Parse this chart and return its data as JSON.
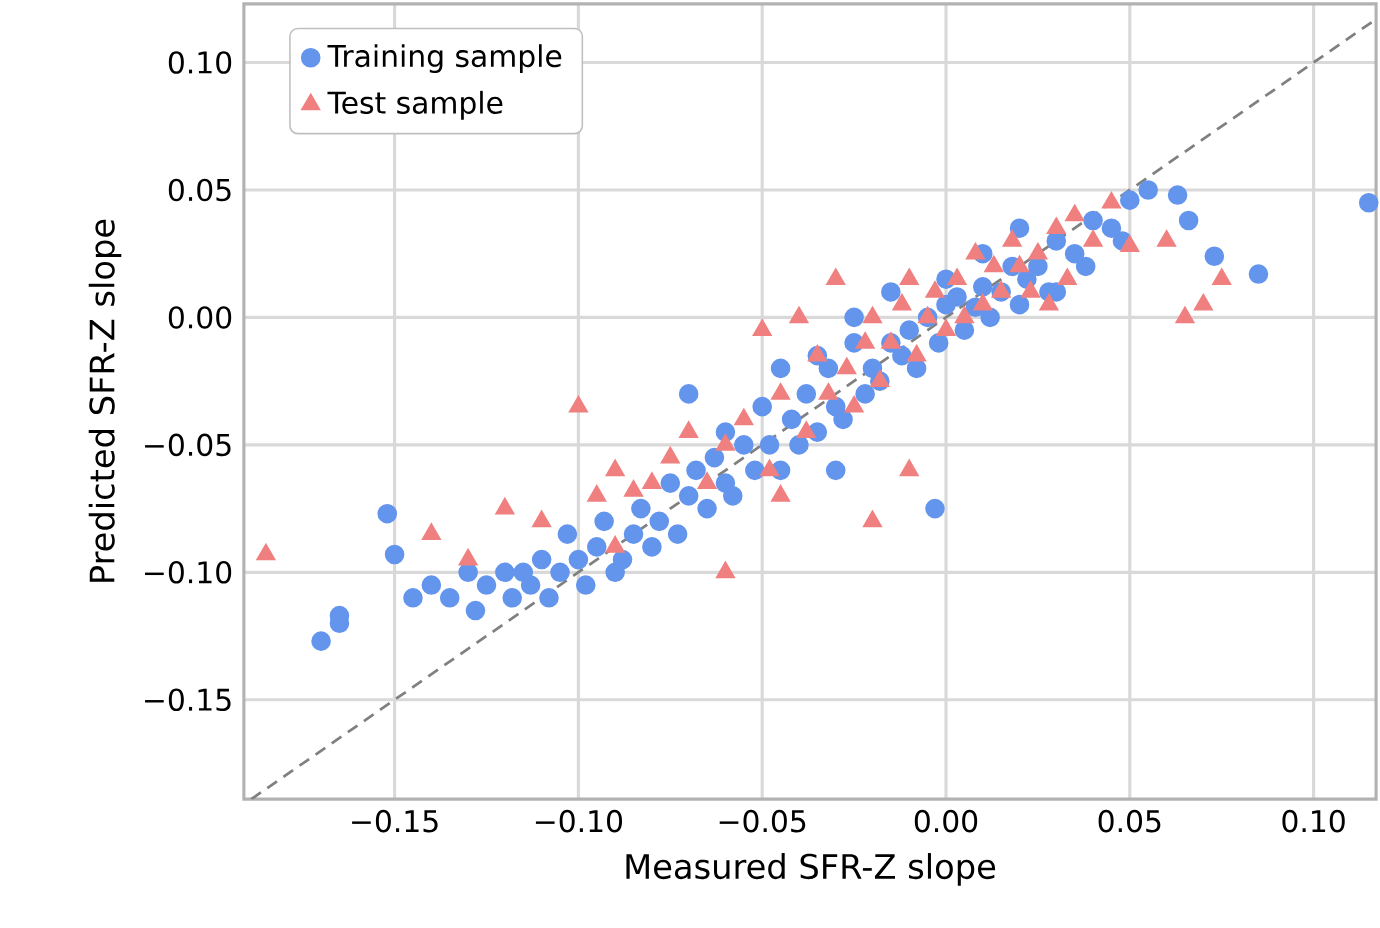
{
  "chart_data": {
    "type": "scatter",
    "xlabel": "Measured SFR-Z slope",
    "ylabel": "Predicted SFR-Z slope",
    "xlim": [
      -0.191,
      0.117
    ],
    "ylim": [
      -0.189,
      0.123
    ],
    "xticks": [
      {
        "value": -0.15,
        "label": "−0.15"
      },
      {
        "value": -0.1,
        "label": "−0.10"
      },
      {
        "value": -0.05,
        "label": "−0.05"
      },
      {
        "value": 0,
        "label": "0.00"
      },
      {
        "value": 0.05,
        "label": "0.05"
      },
      {
        "value": 0.1,
        "label": "0.10"
      }
    ],
    "yticks": [
      {
        "value": -0.15,
        "label": "−0.15"
      },
      {
        "value": -0.1,
        "label": "−0.10"
      },
      {
        "value": -0.05,
        "label": "−0.05"
      },
      {
        "value": 0,
        "label": "0.00"
      },
      {
        "value": 0.05,
        "label": "0.05"
      },
      {
        "value": 0.1,
        "label": "0.10"
      }
    ],
    "grid": true,
    "legend": "top left",
    "series": [
      {
        "name": "Training sample",
        "color": "#6495ed",
        "marker": "circle",
        "x": [
          0.115,
          0.085,
          0.073,
          0.066,
          0.063,
          0.055,
          0.05,
          0.048,
          0.045,
          0.04,
          0.038,
          0.035,
          0.03,
          0.028,
          0.025,
          0.022,
          0.02,
          0.018,
          0.015,
          0.012,
          0.01,
          0.008,
          0.005,
          0.003,
          0.0,
          -0.002,
          -0.003,
          -0.005,
          -0.008,
          -0.01,
          -0.012,
          -0.015,
          -0.018,
          -0.02,
          -0.022,
          -0.025,
          -0.028,
          -0.03,
          -0.032,
          -0.035,
          -0.038,
          -0.04,
          -0.042,
          -0.045,
          -0.048,
          -0.05,
          -0.052,
          -0.055,
          -0.058,
          -0.06,
          -0.063,
          -0.065,
          -0.068,
          -0.07,
          -0.073,
          -0.075,
          -0.078,
          -0.08,
          -0.083,
          -0.085,
          -0.088,
          -0.09,
          -0.093,
          -0.095,
          -0.098,
          -0.1,
          -0.103,
          -0.105,
          -0.108,
          -0.11,
          -0.113,
          -0.115,
          -0.118,
          -0.12,
          -0.125,
          -0.128,
          -0.13,
          -0.135,
          -0.14,
          -0.145,
          -0.15,
          -0.152,
          -0.165,
          -0.165,
          -0.17,
          -0.06,
          -0.07,
          -0.045,
          -0.03,
          0.01,
          -0.0,
          0.02,
          -0.015,
          0.03,
          -0.025,
          -0.035
        ],
        "values": [
          0.045,
          0.017,
          0.024,
          0.038,
          0.048,
          0.05,
          0.046,
          0.03,
          0.035,
          0.038,
          0.02,
          0.025,
          0.03,
          0.01,
          0.02,
          0.015,
          0.005,
          0.02,
          0.01,
          0.0,
          0.012,
          0.004,
          -0.005,
          0.008,
          0.005,
          -0.01,
          -0.075,
          0.0,
          -0.02,
          -0.005,
          -0.015,
          -0.01,
          -0.025,
          -0.02,
          -0.03,
          -0.01,
          -0.04,
          -0.035,
          -0.02,
          -0.045,
          -0.03,
          -0.05,
          -0.04,
          -0.06,
          -0.05,
          -0.035,
          -0.06,
          -0.05,
          -0.07,
          -0.065,
          -0.055,
          -0.075,
          -0.06,
          -0.07,
          -0.085,
          -0.065,
          -0.08,
          -0.09,
          -0.075,
          -0.085,
          -0.095,
          -0.1,
          -0.08,
          -0.09,
          -0.105,
          -0.095,
          -0.085,
          -0.1,
          -0.11,
          -0.095,
          -0.105,
          -0.1,
          -0.11,
          -0.1,
          -0.105,
          -0.115,
          -0.1,
          -0.11,
          -0.105,
          -0.11,
          -0.093,
          -0.077,
          -0.12,
          -0.117,
          -0.127,
          -0.045,
          -0.03,
          -0.02,
          -0.06,
          0.025,
          0.015,
          0.035,
          0.01,
          0.01,
          0.0,
          -0.015
        ]
      },
      {
        "name": "Test sample",
        "color": "#f08080",
        "marker": "triangle",
        "x": [
          -0.185,
          -0.14,
          -0.13,
          -0.12,
          -0.11,
          -0.1,
          -0.095,
          -0.09,
          -0.085,
          -0.08,
          -0.075,
          -0.07,
          -0.065,
          -0.06,
          -0.055,
          -0.05,
          -0.048,
          -0.045,
          -0.04,
          -0.038,
          -0.035,
          -0.032,
          -0.03,
          -0.027,
          -0.025,
          -0.022,
          -0.02,
          -0.018,
          -0.015,
          -0.012,
          -0.01,
          -0.008,
          -0.005,
          -0.003,
          0.0,
          0.003,
          0.005,
          0.008,
          0.01,
          0.013,
          0.015,
          0.018,
          0.02,
          0.023,
          0.025,
          0.028,
          0.03,
          0.033,
          0.035,
          0.04,
          0.045,
          0.05,
          0.06,
          0.065,
          0.07,
          0.075,
          -0.01,
          -0.02,
          -0.045,
          -0.06,
          -0.09
        ],
        "values": [
          -0.093,
          -0.085,
          -0.095,
          -0.075,
          -0.08,
          -0.035,
          -0.07,
          -0.06,
          -0.068,
          -0.065,
          -0.055,
          -0.045,
          -0.065,
          -0.05,
          -0.04,
          -0.005,
          -0.06,
          -0.03,
          0.0,
          -0.045,
          -0.015,
          -0.03,
          0.015,
          -0.02,
          -0.035,
          -0.01,
          0.0,
          -0.025,
          -0.01,
          0.005,
          0.015,
          -0.015,
          0.0,
          0.01,
          -0.005,
          0.015,
          0.0,
          0.025,
          0.005,
          0.02,
          0.01,
          0.03,
          0.02,
          0.01,
          0.025,
          0.005,
          0.035,
          0.015,
          0.04,
          0.03,
          0.045,
          0.028,
          0.03,
          0.0,
          0.005,
          0.015,
          -0.06,
          -0.08,
          -0.07,
          -0.1,
          -0.09
        ]
      },
      {
        "type": "line",
        "color": "#808080",
        "line_style": "dashed",
        "marker": "none",
        "x": [
          -0.189,
          0.117
        ],
        "values": [
          -0.189,
          0.117
        ]
      }
    ]
  }
}
